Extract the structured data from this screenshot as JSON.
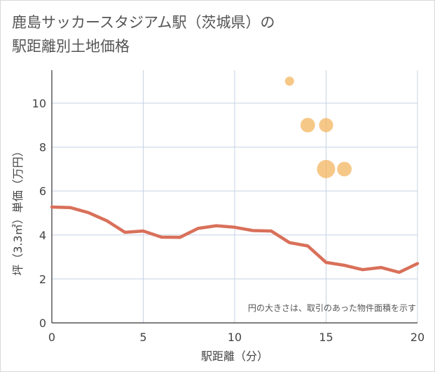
{
  "title": "鹿島サッカースタジアム駅（茨城県）の\n駅距離別土地価格",
  "note": "円の大きさは、取引のあった物件面積を示す",
  "colors": {
    "line": "#d9705a",
    "bubble": "#f2b35a",
    "grid": "#c5d3e3",
    "axis": "#333333"
  },
  "chart_data": {
    "type": "line",
    "xlabel": "駅距離（分）",
    "ylabel": "坪（3.3㎡）単価（万円）",
    "xlim": [
      0,
      20
    ],
    "ylim": [
      0,
      11.5
    ],
    "x_ticks": [
      0,
      5,
      10,
      15,
      20
    ],
    "y_ticks": [
      0,
      2,
      4,
      6,
      8,
      10
    ],
    "grid": true,
    "line_series": {
      "x": [
        0,
        1,
        2,
        3,
        4,
        5,
        6,
        7,
        8,
        9,
        10,
        11,
        12,
        13,
        14,
        15,
        16,
        17,
        18,
        19,
        20
      ],
      "y": [
        5.27,
        5.25,
        5.02,
        4.65,
        4.12,
        4.18,
        3.9,
        3.89,
        4.3,
        4.42,
        4.35,
        4.2,
        4.18,
        3.65,
        3.5,
        2.75,
        2.62,
        2.42,
        2.52,
        2.3,
        2.7
      ]
    },
    "scatter_series": {
      "points": [
        {
          "x": 13,
          "y": 11,
          "size": 1.0
        },
        {
          "x": 14,
          "y": 9,
          "size": 1.6
        },
        {
          "x": 15,
          "y": 9,
          "size": 1.55
        },
        {
          "x": 15,
          "y": 7,
          "size": 2.0
        },
        {
          "x": 16,
          "y": 7,
          "size": 1.6
        }
      ]
    }
  }
}
